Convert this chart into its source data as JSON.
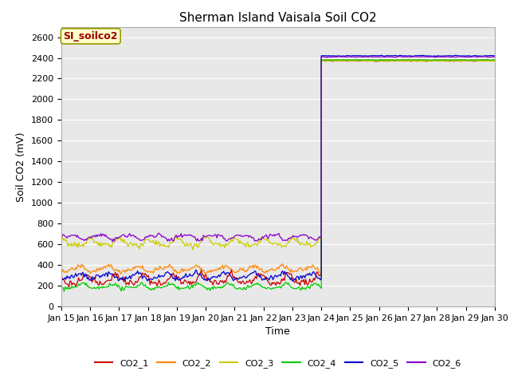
{
  "title": "Sherman Island Vaisala Soil CO2",
  "xlabel": "Time",
  "ylabel": "Soil CO2 (mV)",
  "ylim": [
    0,
    2700
  ],
  "xlim": [
    0,
    15
  ],
  "bg_color": "#e8e8e8",
  "label_box_text": "SI_soilco2",
  "label_box_facecolor": "#ffffcc",
  "label_box_edgecolor": "#999900",
  "label_box_textcolor": "#990000",
  "x_tick_labels": [
    "Jan 15",
    "Jan 16",
    "Jan 17",
    "Jan 18",
    "Jan 19",
    "Jan 20",
    "Jan 21",
    "Jan 22",
    "Jan 23",
    "Jan 24",
    "Jan 25",
    "Jan 26",
    "Jan 27",
    "Jan 28",
    "Jan 29",
    "Jan 30"
  ],
  "series": [
    {
      "name": "CO2_1",
      "color": "#cc0000",
      "base_mean": 255,
      "base_amp": 55,
      "post_val": 2370
    },
    {
      "name": "CO2_2",
      "color": "#ff8800",
      "base_mean": 360,
      "base_amp": 35,
      "post_val": 2380
    },
    {
      "name": "CO2_3",
      "color": "#cccc00",
      "base_mean": 615,
      "base_amp": 45,
      "post_val": 2370
    },
    {
      "name": "CO2_4",
      "color": "#00cc00",
      "base_mean": 190,
      "base_amp": 30,
      "post_val": 2380
    },
    {
      "name": "CO2_5",
      "color": "#0000cc",
      "base_mean": 290,
      "base_amp": 40,
      "post_val": 2420
    },
    {
      "name": "CO2_6",
      "color": "#8800cc",
      "base_mean": 670,
      "base_amp": 30,
      "post_val": 2410
    }
  ],
  "transition_x": 9.0,
  "n_points_base": 270,
  "n_points_post": 90,
  "title_fontsize": 11,
  "axis_label_fontsize": 9,
  "tick_fontsize": 8,
  "legend_fontsize": 8,
  "annotation_fontsize": 9
}
